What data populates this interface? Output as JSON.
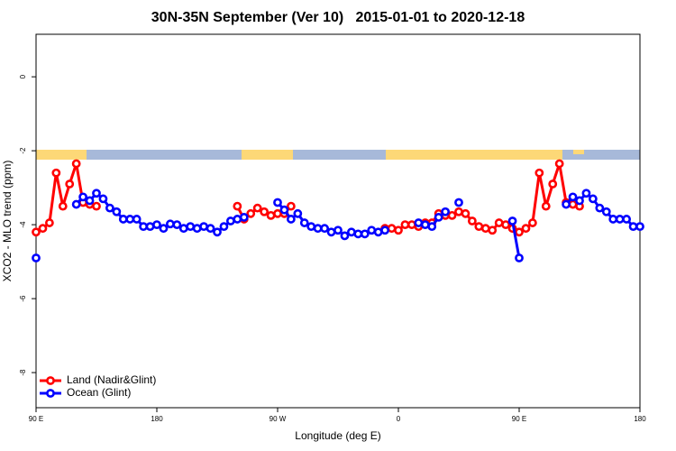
{
  "chart_data": {
    "type": "line",
    "title": "30N-35N September (Ver 10)   2015-01-01 to 2020-12-18",
    "x_label": "Longitude (deg E)",
    "y_label": "XCO2 - MLO trend (ppm)",
    "xlim": [
      90,
      540
    ],
    "xticks": [
      {
        "value": 90,
        "label": "90 E"
      },
      180,
      {
        "value": 270,
        "label": "90 W"
      },
      {
        "value": 360,
        "label": "0"
      },
      {
        "value": 450,
        "label": "90 E"
      },
      {
        "value": 540,
        "label": "180"
      }
    ],
    "ylim": [
      -8.95,
      1.15
    ],
    "yticks": [
      -8,
      -6,
      -4,
      -2,
      0
    ],
    "legend": "bottom-left",
    "x": [
      90,
      95,
      100,
      105,
      110,
      115,
      120,
      125,
      130,
      135,
      140,
      145,
      150,
      155,
      160,
      165,
      170,
      175,
      180,
      185,
      190,
      195,
      200,
      205,
      210,
      215,
      220,
      225,
      230,
      235,
      240,
      245,
      250,
      255,
      260,
      265,
      270,
      275,
      280,
      285,
      290,
      295,
      300,
      305,
      310,
      315,
      320,
      325,
      330,
      335,
      340,
      345,
      350,
      355,
      360,
      365,
      370,
      375,
      380,
      385,
      390,
      395,
      400,
      405,
      410,
      415,
      420,
      425,
      430,
      435,
      440,
      445,
      450,
      455,
      460,
      465,
      470,
      475,
      480,
      485,
      490,
      495,
      500,
      505,
      510,
      515,
      520,
      525,
      530,
      535,
      540
    ],
    "series": [
      {
        "name": "Land (Nadir&Glint)",
        "color": "#ff0000",
        "values": [
          -4.2,
          -4.1,
          -3.95,
          -2.6,
          -3.5,
          -2.9,
          -2.35,
          -3.4,
          -3.45,
          -3.5,
          null,
          null,
          null,
          null,
          null,
          null,
          null,
          null,
          null,
          null,
          null,
          null,
          null,
          null,
          null,
          null,
          null,
          null,
          null,
          null,
          -3.5,
          -3.85,
          -3.7,
          -3.55,
          -3.65,
          -3.75,
          -3.7,
          -3.7,
          -3.5,
          null,
          null,
          null,
          null,
          null,
          null,
          null,
          null,
          null,
          null,
          null,
          null,
          null,
          -4.1,
          -4.1,
          -4.15,
          -4.0,
          -4.0,
          -4.05,
          -3.95,
          -3.95,
          -3.7,
          -3.75,
          -3.75,
          -3.65,
          -3.7,
          -3.9,
          -4.05,
          -4.1,
          -4.15,
          -3.95,
          -4.0,
          -4.1,
          -4.2,
          -4.1,
          -3.95,
          -2.6,
          -3.5,
          -2.9,
          -2.35,
          -3.4,
          -3.45,
          -3.5,
          null,
          null,
          null,
          null,
          null,
          null,
          null,
          null,
          null
        ]
      },
      {
        "name": "Ocean (Glint)",
        "color": "#0000ff",
        "values": [
          -4.9,
          null,
          null,
          null,
          null,
          null,
          -3.45,
          -3.25,
          -3.35,
          -3.15,
          -3.3,
          -3.55,
          -3.65,
          -3.85,
          -3.85,
          -3.85,
          -4.05,
          -4.05,
          -4.0,
          -4.1,
          -3.98,
          -4.0,
          -4.1,
          -4.05,
          -4.1,
          -4.05,
          -4.1,
          -4.2,
          -4.05,
          -3.9,
          -3.85,
          -3.8,
          null,
          null,
          null,
          null,
          -3.4,
          -3.6,
          -3.85,
          -3.7,
          -3.95,
          -4.05,
          -4.1,
          -4.1,
          -4.2,
          -4.15,
          -4.3,
          -4.2,
          -4.25,
          -4.25,
          -4.15,
          -4.2,
          -4.15,
          null,
          null,
          null,
          null,
          -3.95,
          -4.0,
          -4.05,
          -3.8,
          -3.65,
          null,
          -3.4,
          null,
          null,
          null,
          null,
          null,
          null,
          null,
          -3.9,
          -4.9,
          null,
          null,
          null,
          null,
          null,
          null,
          -3.45,
          -3.25,
          -3.35,
          -3.15,
          -3.3,
          -3.55,
          -3.65,
          -3.85,
          -3.85,
          -3.85,
          -4.05,
          -4.05
        ]
      }
    ]
  }
}
